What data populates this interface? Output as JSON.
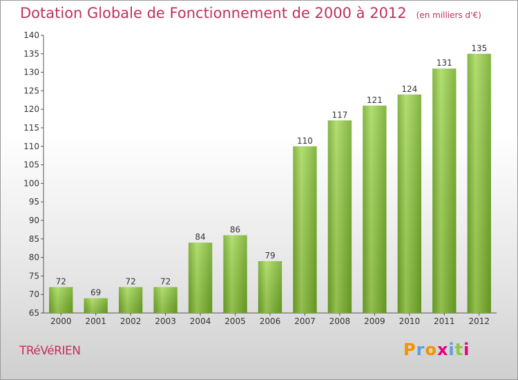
{
  "title": "Dotation Globale de Fonctionnement de 2000 à 2012",
  "subtitle": "(en milliers d'€)",
  "commune": "TRéVéRIEN",
  "logo": {
    "letters": [
      "P",
      "r",
      "o",
      "x",
      "i",
      "t",
      "i"
    ],
    "colors": [
      "#f39200",
      "#5aa0d8",
      "#f39200",
      "#e6007e",
      "#5aa0d8",
      "#8dc63f",
      "#e6007e"
    ]
  },
  "colors": {
    "bar": "#7db62d",
    "bar_light": "#a6d85a",
    "title": "#c0305a"
  },
  "chart_data": {
    "type": "bar",
    "categories": [
      "2000",
      "2001",
      "2002",
      "2003",
      "2004",
      "2005",
      "2006",
      "2007",
      "2008",
      "2009",
      "2010",
      "2011",
      "2012"
    ],
    "values": [
      72,
      69,
      72,
      72,
      84,
      86,
      79,
      110,
      117,
      121,
      124,
      131,
      135
    ],
    "title": "Dotation Globale de Fonctionnement de 2000 à 2012",
    "subtitle": "(en milliers d'€)",
    "ylim": [
      65,
      140
    ],
    "yticks": [
      65,
      70,
      75,
      80,
      85,
      90,
      95,
      100,
      105,
      110,
      115,
      120,
      125,
      130,
      135,
      140
    ],
    "grid": false,
    "data_labels": true
  }
}
